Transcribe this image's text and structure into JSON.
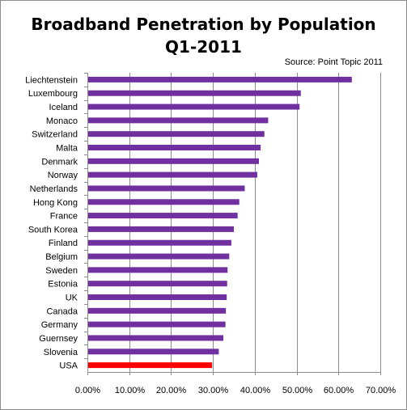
{
  "chart_data": {
    "type": "bar",
    "orientation": "horizontal",
    "title_line1": "Broadband Penetration by Population",
    "title_line2": "Q1-2011",
    "source": "Source: Point Topic 2011",
    "categories": [
      "Liechtenstein",
      "Luxembourg",
      "Iceland",
      "Monaco",
      "Switzerland",
      "Malta",
      "Denmark",
      "Norway",
      "Netherlands",
      "Hong Kong",
      "France",
      "South Korea",
      "Finland",
      "Belgium",
      "Sweden",
      "Estonia",
      "UK",
      "Canada",
      "Germany",
      "Guernsey",
      "Slovenia",
      "USA"
    ],
    "values": [
      63.2,
      51.0,
      50.7,
      43.2,
      42.3,
      41.4,
      41.0,
      40.6,
      37.6,
      36.3,
      35.9,
      35.0,
      34.4,
      33.9,
      33.5,
      33.4,
      33.3,
      33.1,
      33.0,
      32.5,
      31.4,
      29.8
    ],
    "highlight_category": "USA",
    "xlim": [
      0,
      70
    ],
    "xticks": [
      "0.00%",
      "10.00%",
      "20.00%",
      "30.00%",
      "40.00%",
      "50.00%",
      "60.00%",
      "70.00%"
    ],
    "grid": true,
    "colors": {
      "bar": "#7030a0",
      "highlight": "#ff0000",
      "grid": "#8c8c8c",
      "axis": "#8c8c8c"
    }
  }
}
